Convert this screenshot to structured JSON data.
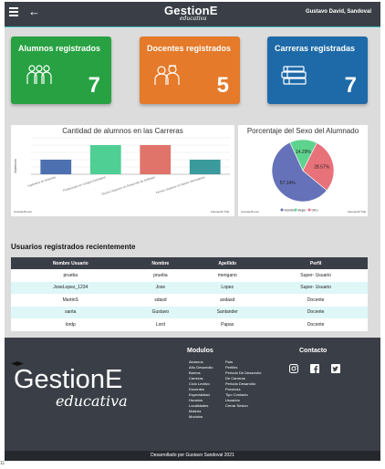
{
  "header": {
    "back_icon": "←",
    "brand": "GestionE",
    "brand_sub": "educativa",
    "user": "Gustavo David, Sandoval"
  },
  "cards": [
    {
      "title": "Alumnos registrados",
      "value": "7",
      "color": "#27a142",
      "icon": "group-icon"
    },
    {
      "title": "Docentes registrados",
      "value": "5",
      "color": "#e47a2a",
      "icon": "teachers-icon"
    },
    {
      "title": "Carreras registradas",
      "value": "7",
      "color": "#1e6aa8",
      "icon": "books-icon"
    }
  ],
  "charts": {
    "credit": "CanvasJS.com",
    "credit2": "CanvasJS Trial"
  },
  "chart_data": [
    {
      "type": "bar",
      "title": "Cantidad de alumnos en las Carreras",
      "ylabel": "Alumnos",
      "categories": [
        "Ingeniería en sistemas",
        "Profesorado en Lengua Extranjera",
        "Técnico Superior en Desarrollo de Software",
        "Técnico Superior en Bases Informáticas"
      ],
      "values": [
        1,
        2,
        2,
        1
      ],
      "colors": [
        "#4d70b0",
        "#4fcf94",
        "#e0746a",
        "#3a9a9c"
      ],
      "ylim": [
        0,
        2.5
      ]
    },
    {
      "type": "pie",
      "title": "Porcentaje del Sexo del Alumnado",
      "categories": [
        "Hombre",
        "Mujer",
        "Otro"
      ],
      "values": [
        57.14,
        14.29,
        28.57
      ],
      "labels": [
        "57.14%",
        "14.29%",
        "28.57%"
      ],
      "colors": [
        "#6571b8",
        "#5ed38e",
        "#e8727a"
      ],
      "legend_position": "bottom"
    }
  ],
  "users_section": {
    "title": "Usuarios registrados recientemente",
    "columns": [
      "Nombre Usuario",
      "Nombre",
      "Apellido",
      "Perfil"
    ],
    "rows": [
      [
        "prueba",
        "prueba",
        "mengano",
        "Super- Usuario"
      ],
      [
        "JoseLopez_1234",
        "Jose",
        "Lopez",
        "Super- Usuario"
      ],
      [
        "MartinS",
        "sdasd",
        "asdasd",
        "Docente"
      ],
      [
        "santa",
        "Gustavo",
        "Santander",
        "Docente"
      ],
      [
        "lordp",
        "Lord",
        "Papas",
        "Docente"
      ]
    ]
  },
  "footer": {
    "logo_main": "GestionE",
    "logo_sub": "educativa",
    "modules_title": "Modulos",
    "modules_col1": [
      "Alumnos",
      "Año Desarrollo",
      "Barrios",
      "Carreras",
      "Ciclo Lectivo",
      "Docentes",
      "Especialidad",
      "Horarios",
      "Localidades",
      "Materia",
      "Modulos"
    ],
    "modules_col2": [
      "País",
      "Perfiles",
      "Periodo De Desarrollo De Carreras",
      "Periodo Desarrollo",
      "Provincia",
      "Tipo Contacto",
      "Usuarios",
      "Cerrar Sesion"
    ],
    "contact_title": "Contacto",
    "social": [
      "instagram-icon",
      "facebook-icon",
      "twitter-icon"
    ],
    "credit": "Desarrollado por Gustavo Sandoval 2021"
  },
  "page_number": "11"
}
